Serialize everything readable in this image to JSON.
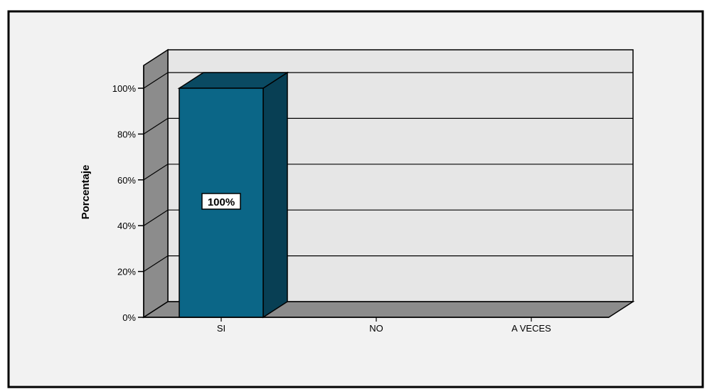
{
  "chart_data": {
    "type": "bar",
    "categories": [
      "SI",
      "NO",
      "A VECES"
    ],
    "values": [
      100,
      0,
      0
    ],
    "data_labels": [
      "100%"
    ],
    "title": "",
    "xlabel": "",
    "ylabel": "Porcentaje",
    "ylim": [
      0,
      100
    ],
    "yticks": [
      "0%",
      "20%",
      "40%",
      "60%",
      "80%",
      "100%"
    ],
    "grid": true,
    "legend": "none",
    "colors": {
      "bar_front": "#0b6687",
      "bar_side": "#083f54",
      "bar_top": "#0a4a62",
      "wall": "#e6e6e6",
      "side_wall": "#8c8c8c",
      "floor": "#8c8c8c",
      "background": "#f2f2f2"
    }
  }
}
